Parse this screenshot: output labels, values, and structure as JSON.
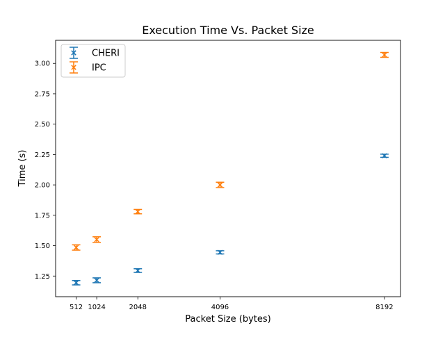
{
  "chart_data": {
    "type": "scatter",
    "title": "Execution Time Vs. Packet Size",
    "xlabel": "Packet Size (bytes)",
    "ylabel": "Time (s)",
    "x": [
      512,
      1024,
      2048,
      4096,
      8192
    ],
    "x_ticks": [
      "512",
      "1024",
      "2048",
      "4096",
      "8192"
    ],
    "y_ticks": [
      "1.25",
      "1.50",
      "1.75",
      "2.00",
      "2.25",
      "2.50",
      "2.75",
      "3.00"
    ],
    "y_tick_values": [
      1.25,
      1.5,
      1.75,
      2.0,
      2.25,
      2.5,
      2.75,
      3.0
    ],
    "xlim": [
      0,
      8592
    ],
    "ylim": [
      1.08,
      3.19
    ],
    "error_bars": true,
    "grid": false,
    "legend": "top-left",
    "series": [
      {
        "name": "CHERI",
        "color": "#1f77b4",
        "values": [
          1.195,
          1.215,
          1.295,
          1.445,
          2.24
        ],
        "errors": [
          0.018,
          0.02,
          0.015,
          0.013,
          0.013
        ]
      },
      {
        "name": "IPC",
        "color": "#ff7f0e",
        "values": [
          1.485,
          1.55,
          1.78,
          2.0,
          3.07
        ],
        "errors": [
          0.022,
          0.023,
          0.018,
          0.022,
          0.02
        ]
      }
    ]
  }
}
